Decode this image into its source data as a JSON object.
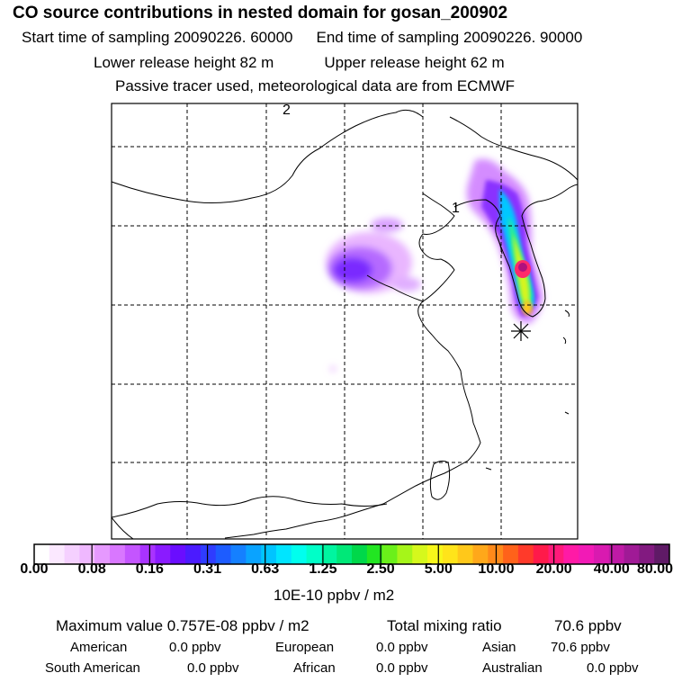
{
  "header": {
    "title": "CO  source contributions in nested domain for gosan_200902",
    "start": "Start time of sampling 20090226. 60000",
    "end": "End time of sampling 20090226. 90000",
    "lower": "Lower release height   82 m",
    "upper": "Upper release height   62 m",
    "tracer": "Passive tracer used, meteorological data are from ECMWF"
  },
  "map": {
    "labels": [
      "2",
      "1"
    ],
    "receptor": "gosan"
  },
  "colorbar": {
    "ticks": [
      "0.00",
      "0.08",
      "0.16",
      "0.31",
      "0.63",
      "1.25",
      "2.50",
      "5.00",
      "10.00",
      "20.00",
      "40.00",
      "80.00"
    ],
    "units": "10E-10 ppbv / m2",
    "colors": [
      "#ffffff",
      "#fbe8ff",
      "#f5d0ff",
      "#efb8ff",
      "#e699ff",
      "#d977ff",
      "#c455ff",
      "#a933ff",
      "#8a1bff",
      "#6a0dff",
      "#4b1bff",
      "#2f3cff",
      "#1d5cff",
      "#1580ff",
      "#0aa3ff",
      "#00c4ff",
      "#00e5ff",
      "#00ffee",
      "#00ffc8",
      "#00f5a0",
      "#00e878",
      "#00d84a",
      "#22e622",
      "#6af01a",
      "#a6f519",
      "#d6f81c",
      "#f7f71a",
      "#ffe41a",
      "#ffc81a",
      "#ffa81a",
      "#ff8a1a",
      "#ff621a",
      "#ff3a2a",
      "#ff1a4a",
      "#ff1a7a",
      "#ff1aa6",
      "#f21ab6",
      "#d91ab0",
      "#bf1aa6",
      "#a01a96",
      "#821a80",
      "#5f1a66"
    ]
  },
  "stats": {
    "max_label": "Maximum value  0.757E-08 ppbv / m2",
    "total_label": "Total mixing ratio",
    "total_value": "70.6 ppbv",
    "american_label": "American",
    "american_value": "0.0 ppbv",
    "european_label": "European",
    "european_value": "0.0 ppbv",
    "asian_label": "Asian",
    "asian_value": "70.6 ppbv",
    "south_american_label": "South American",
    "south_american_value": "0.0 ppbv",
    "african_label": "African",
    "african_value": "0.0 ppbv",
    "australian_label": "Australian",
    "australian_value": "0.0 ppbv"
  }
}
